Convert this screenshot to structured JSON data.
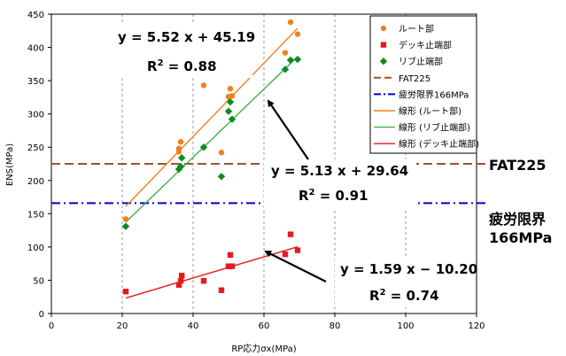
{
  "chart_data": {
    "type": "scatter",
    "xlabel": "RP応力σx(MPa)",
    "ylabel": "ENS(MPa)",
    "xlim": [
      0,
      120
    ],
    "ylim": [
      0,
      450
    ],
    "xticks": [
      0,
      20,
      40,
      60,
      80,
      100,
      120
    ],
    "yticks": [
      0,
      50,
      100,
      150,
      200,
      250,
      300,
      350,
      400,
      450
    ],
    "grid": "x-dashed",
    "legend_position": "top-right",
    "series": [
      {
        "name": "ルート部",
        "marker": "circle",
        "color": "#f08020",
        "points": [
          [
            21,
            142
          ],
          [
            36,
            243
          ],
          [
            36,
            248
          ],
          [
            36.5,
            258
          ],
          [
            43,
            343
          ],
          [
            48,
            242
          ],
          [
            50,
            326
          ],
          [
            50.5,
            338
          ],
          [
            51,
            327
          ],
          [
            66,
            392
          ],
          [
            67.5,
            438
          ],
          [
            69.5,
            420
          ]
        ]
      },
      {
        "name": "デッキ止端部",
        "marker": "square",
        "color": "#e8191e",
        "points": [
          [
            21,
            33
          ],
          [
            36,
            43
          ],
          [
            36.5,
            49
          ],
          [
            36.8,
            57
          ],
          [
            43,
            49
          ],
          [
            48,
            35
          ],
          [
            50,
            71
          ],
          [
            50.5,
            88
          ],
          [
            51,
            71
          ],
          [
            66,
            89
          ],
          [
            67.5,
            119
          ],
          [
            69.5,
            95
          ]
        ]
      },
      {
        "name": "リブ止端部",
        "marker": "diamond",
        "color": "#0d8a1e",
        "points": [
          [
            21,
            131
          ],
          [
            36,
            217
          ],
          [
            36.5,
            221
          ],
          [
            36.8,
            234
          ],
          [
            43,
            250
          ],
          [
            48,
            206
          ],
          [
            50,
            304
          ],
          [
            50.5,
            318
          ],
          [
            51,
            292
          ],
          [
            66,
            367
          ],
          [
            67.5,
            381
          ],
          [
            69.5,
            382
          ]
        ]
      }
    ],
    "reference_lines": [
      {
        "name": "FAT225",
        "value": 225,
        "style": "dashed",
        "color": "#a0522d"
      },
      {
        "name": "疲労限界166MPa",
        "value": 166,
        "style": "dash-dot",
        "color": "#0000cc"
      }
    ],
    "trendlines": [
      {
        "name": "線形 (ルート部)",
        "slope": 5.52,
        "intercept": 45.19,
        "x_range": [
          21,
          69.5
        ],
        "color": "#f08020"
      },
      {
        "name": "線形 (リブ止端部)",
        "slope": 5.13,
        "intercept": 29.64,
        "x_range": [
          21,
          69.5
        ],
        "color": "#3fb24a"
      },
      {
        "name": "線形 (デッキ止端部)",
        "slope": 1.59,
        "intercept": -10.2,
        "x_range": [
          21,
          69.5
        ],
        "color": "#e8191e"
      }
    ],
    "annotations": [
      {
        "text": "y = 5.52 x + 45.19",
        "r2_label": "R",
        "r2_sup": "2",
        "r2_value": " = 0.88"
      },
      {
        "text": "y = 5.13 x + 29.64",
        "r2_label": "R",
        "r2_sup": "2",
        "r2_value": " = 0.91"
      },
      {
        "text": "y = 1.59 x − 10.20",
        "r2_label": "R",
        "r2_sup": "2",
        "r2_value": " = 0.74"
      }
    ],
    "side_labels": [
      "FAT225",
      "疲労限界",
      "166MPa"
    ]
  }
}
